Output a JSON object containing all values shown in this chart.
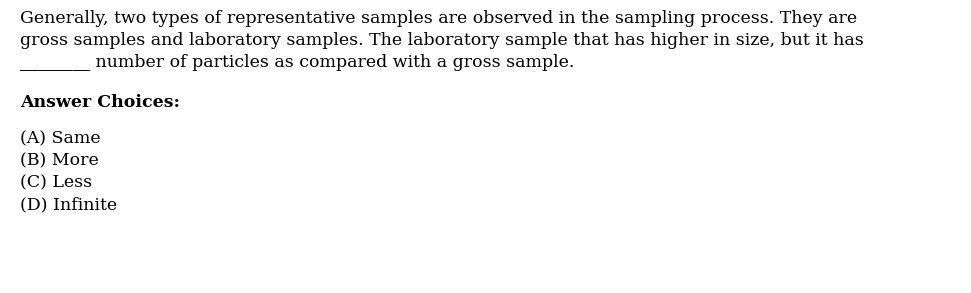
{
  "background_color": "#ffffff",
  "line1": "Generally, two types of representative samples are observed in the sampling process. They are",
  "line2": "gross samples and laboratory samples. The laboratory sample that has higher in size, but it has",
  "line3_blank": "________",
  "line3_suffix": " number of particles as compared with a gross sample.",
  "answer_header": "Answer Choices:",
  "choices": [
    "(A) Same",
    "(B) More",
    "(C) Less",
    "(D) Infinite"
  ],
  "font_size": 12.5,
  "font_family": "DejaVu Serif",
  "text_color": "#000000",
  "fig_width": 9.71,
  "fig_height": 2.93,
  "dpi": 100
}
